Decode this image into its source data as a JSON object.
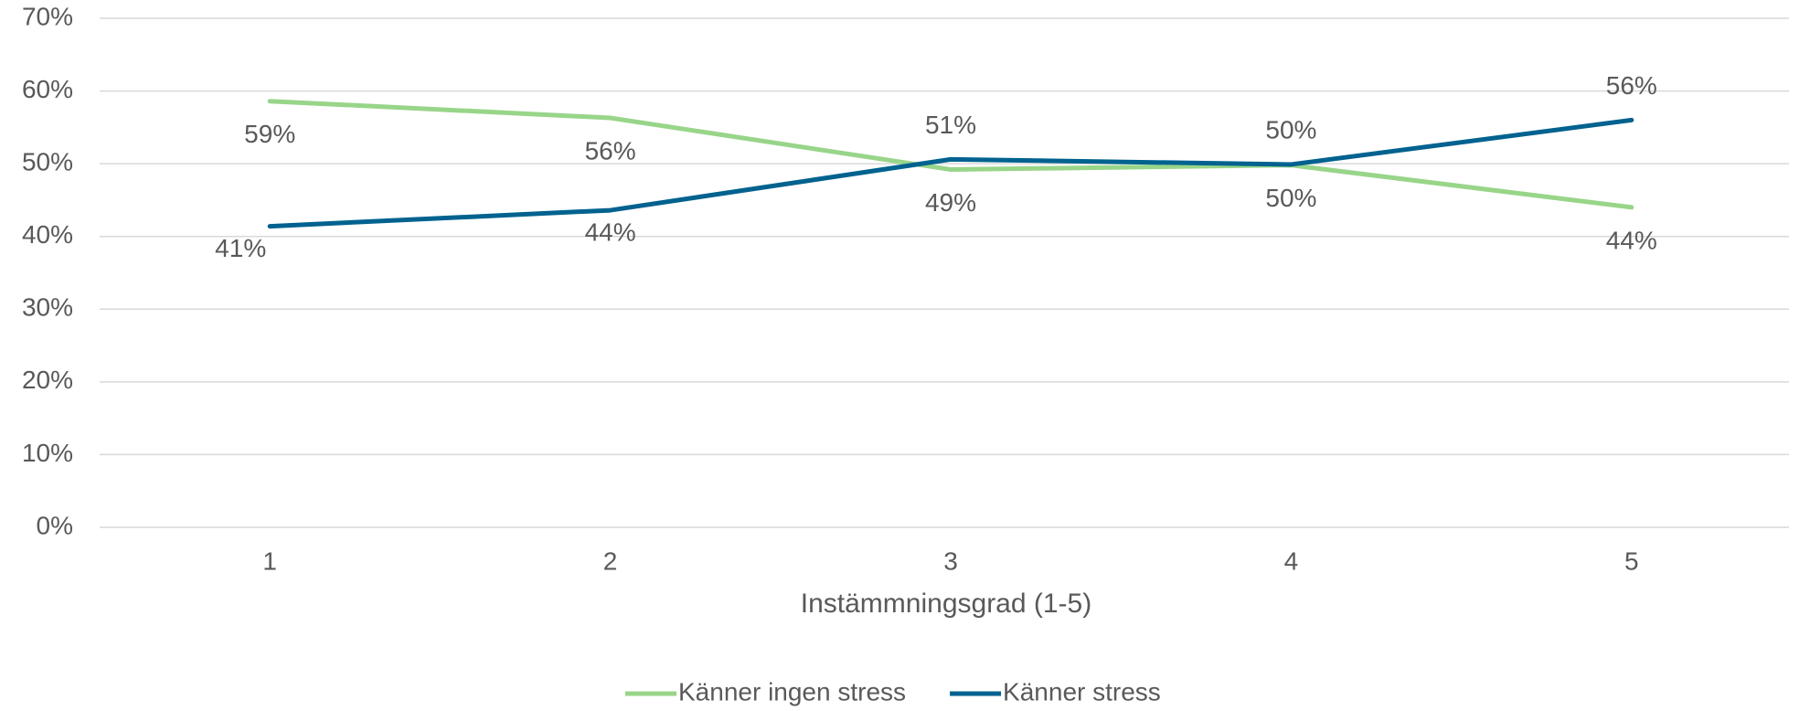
{
  "chart_data": {
    "type": "line",
    "x_label": "Instämmningsgrad (1-5)",
    "categories": [
      "1",
      "2",
      "3",
      "4",
      "5"
    ],
    "series": [
      {
        "name": "Känner ingen stress",
        "color": "#98d589",
        "values": [
          58.6,
          56.3,
          49.2,
          49.8,
          44
        ],
        "value_labels": [
          "59%",
          "56%",
          "49%",
          "50%",
          "44%"
        ]
      },
      {
        "name": "Känner stress",
        "color": "#00628f",
        "values": [
          41.4,
          43.6,
          50.6,
          49.9,
          56
        ],
        "value_labels": [
          "41%",
          "44%",
          "51%",
          "50%",
          "56%"
        ]
      }
    ],
    "ylim": [
      0,
      70
    ],
    "yticks": [
      {
        "value": 0,
        "label": "0%"
      },
      {
        "value": 10,
        "label": "10%"
      },
      {
        "value": 20,
        "label": "20%"
      },
      {
        "value": 30,
        "label": "30%"
      },
      {
        "value": 40,
        "label": "40%"
      },
      {
        "value": 50,
        "label": "50%"
      },
      {
        "value": 60,
        "label": "60%"
      },
      {
        "value": 70,
        "label": "70%"
      }
    ],
    "grid": true,
    "legend": "bottom"
  }
}
